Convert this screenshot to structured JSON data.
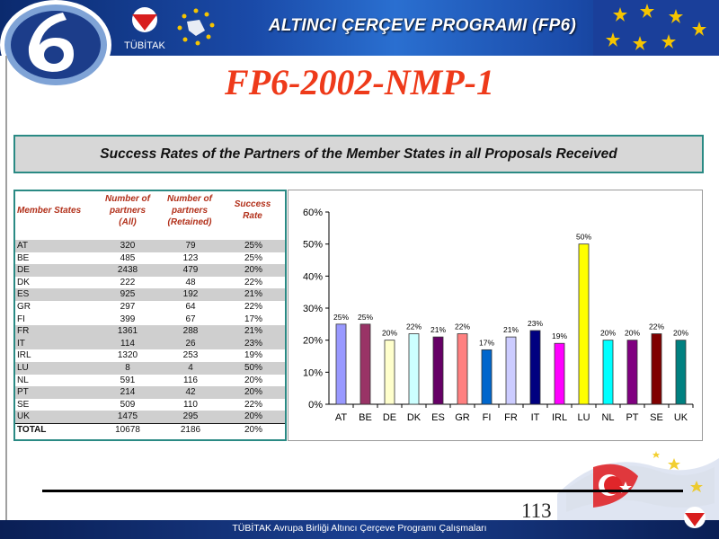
{
  "header": {
    "title": "ALTINCI ÇERÇEVE PROGRAMI (FP6)",
    "logo_text": "TÜBİTAK",
    "logo_icon": "tubitak-logo-icon",
    "badge_icon": "six-badge-icon",
    "eu_icon": "eu-stars-icon"
  },
  "slide": {
    "title": "FP6-2002-NMP-1",
    "caption": "Success Rates of the Partners of the Member States in all Proposals Received",
    "page_number": "113"
  },
  "table": {
    "headers": [
      "Member States",
      "Number of partners (All)",
      "Number of partners (Retained)",
      "Success Rate"
    ],
    "header_lines": [
      [
        "Member States"
      ],
      [
        "Number of",
        "partners",
        "(All)"
      ],
      [
        "Number of",
        "partners",
        "(Retained)"
      ],
      [
        "Success",
        "Rate"
      ]
    ],
    "rows": [
      [
        "AT",
        "320",
        "79",
        "25%"
      ],
      [
        "BE",
        "485",
        "123",
        "25%"
      ],
      [
        "DE",
        "2438",
        "479",
        "20%"
      ],
      [
        "DK",
        "222",
        "48",
        "22%"
      ],
      [
        "ES",
        "925",
        "192",
        "21%"
      ],
      [
        "GR",
        "297",
        "64",
        "22%"
      ],
      [
        "FI",
        "399",
        "67",
        "17%"
      ],
      [
        "FR",
        "1361",
        "288",
        "21%"
      ],
      [
        "IT",
        "114",
        "26",
        "23%"
      ],
      [
        "IRL",
        "1320",
        "253",
        "19%"
      ],
      [
        "LU",
        "8",
        "4",
        "50%"
      ],
      [
        "NL",
        "591",
        "116",
        "20%"
      ],
      [
        "PT",
        "214",
        "42",
        "20%"
      ],
      [
        "SE",
        "509",
        "110",
        "22%"
      ],
      [
        "UK",
        "1475",
        "295",
        "20%"
      ]
    ],
    "total": [
      "TOTAL",
      "10678",
      "2186",
      "20%"
    ]
  },
  "chart_data": {
    "type": "bar",
    "categories": [
      "AT",
      "BE",
      "DE",
      "DK",
      "ES",
      "GR",
      "FI",
      "FR",
      "IT",
      "IRL",
      "LU",
      "NL",
      "PT",
      "SE",
      "UK"
    ],
    "values": [
      25,
      25,
      20,
      22,
      21,
      22,
      17,
      21,
      23,
      19,
      50,
      20,
      20,
      22,
      20
    ],
    "data_labels": [
      "25%",
      "25%",
      "20%",
      "22%",
      "21%",
      "22%",
      "17%",
      "21%",
      "23%",
      "19%",
      "50%",
      "20%",
      "20%",
      "22%",
      "20%"
    ],
    "colors": [
      "#9999ff",
      "#993366",
      "#ffffcc",
      "#ccffff",
      "#660066",
      "#ff8080",
      "#0066cc",
      "#ccccff",
      "#000080",
      "#ff00ff",
      "#ffff00",
      "#00ffff",
      "#800080",
      "#800000",
      "#008080"
    ],
    "ylim": [
      0,
      60
    ],
    "yticks": [
      0,
      10,
      20,
      30,
      40,
      50,
      60
    ],
    "ytick_labels": [
      "0%",
      "10%",
      "20%",
      "30%",
      "40%",
      "50%",
      "60%"
    ],
    "title": "",
    "xlabel": "",
    "ylabel": "",
    "grid": false,
    "legend": "none"
  },
  "footer": {
    "text": "TÜBİTAK Avrupa Birliği Altıncı Çerçeve Programı Çalışmaları"
  }
}
